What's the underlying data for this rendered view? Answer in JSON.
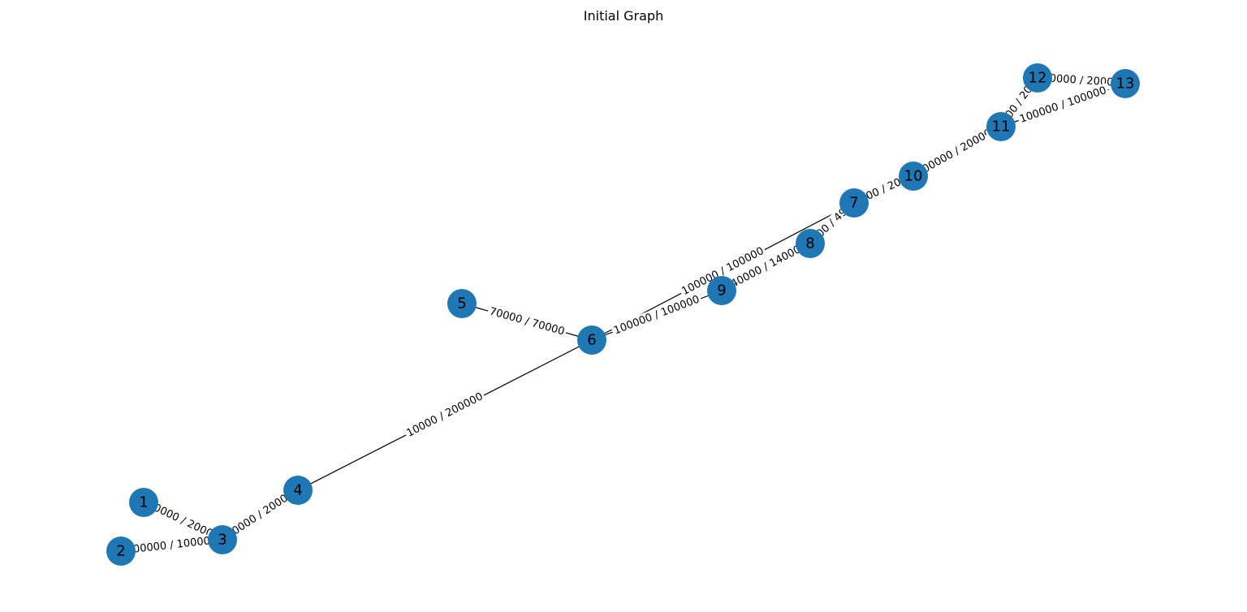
{
  "title": "Initial Graph",
  "colors": {
    "node": "#1f77b4",
    "edge": "#000000",
    "label_bg": "#ffffff"
  },
  "nodes": [
    {
      "id": "1"
    },
    {
      "id": "2"
    },
    {
      "id": "3"
    },
    {
      "id": "4"
    },
    {
      "id": "5"
    },
    {
      "id": "6"
    },
    {
      "id": "7"
    },
    {
      "id": "8"
    },
    {
      "id": "9"
    },
    {
      "id": "10"
    },
    {
      "id": "11"
    },
    {
      "id": "12"
    },
    {
      "id": "13"
    }
  ],
  "edges": [
    {
      "source": "1",
      "target": "3",
      "label": "200000 / 200000"
    },
    {
      "source": "2",
      "target": "3",
      "label": "100000 / 100000"
    },
    {
      "source": "3",
      "target": "4",
      "label": "200000 / 200000"
    },
    {
      "source": "4",
      "target": "6",
      "label": "10000 / 200000"
    },
    {
      "source": "5",
      "target": "6",
      "label": "70000 / 70000"
    },
    {
      "source": "6",
      "target": "9",
      "label": "100000 / 100000"
    },
    {
      "source": "6",
      "target": "7",
      "label": "100000 / 100000"
    },
    {
      "source": "9",
      "target": "8",
      "label": "140000 / 140000"
    },
    {
      "source": "8",
      "target": "7",
      "label": "49000 / 49000"
    },
    {
      "source": "7",
      "target": "10",
      "label": "20000 / 20000"
    },
    {
      "source": "10",
      "target": "11",
      "label": "200000 / 200000"
    },
    {
      "source": "11",
      "target": "12",
      "label": "200000 / 200000"
    },
    {
      "source": "12",
      "target": "13",
      "label": "200000 / 200000"
    },
    {
      "source": "11",
      "target": "13",
      "label": "100000 / 100000"
    }
  ]
}
